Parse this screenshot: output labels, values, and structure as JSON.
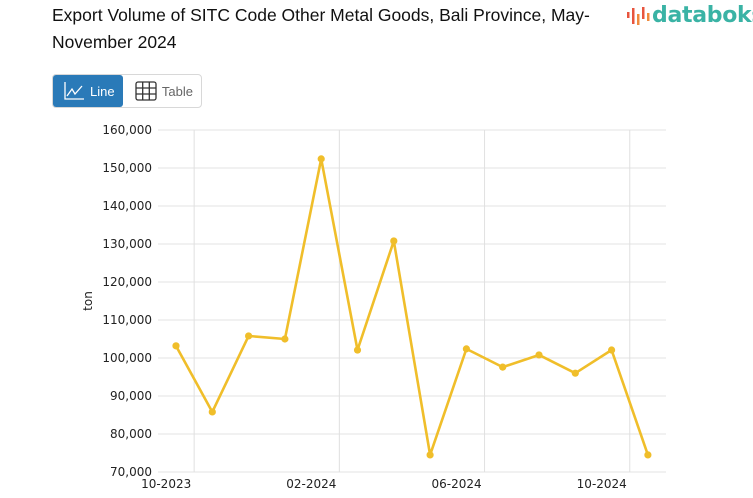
{
  "title": "Export Volume of SITC Code Other Metal Goods, Bali Province, May-November 2024",
  "brand": {
    "name": "databoks",
    "color": "#3ab3a5",
    "icon": "bar-signal-logo-icon"
  },
  "view_toggle": {
    "line_label": "Line",
    "table_label": "Table",
    "selected": "Line",
    "line_icon": "line-chart-icon",
    "table_icon": "grid-table-icon",
    "accent": "#2a7ab8"
  },
  "chart_data": {
    "type": "line",
    "title": "Export Volume of SITC Code Other Metal Goods, Bali Province, May-November 2024",
    "xlabel": "",
    "ylabel": "ton",
    "ylim": [
      70000,
      160000
    ],
    "yticks": [
      "70,000",
      "80,000",
      "90,000",
      "100,000",
      "110,000",
      "120,000",
      "130,000",
      "140,000",
      "150,000",
      "160,000"
    ],
    "xticks": [
      "10-2023",
      "02-2024",
      "06-2024",
      "10-2024"
    ],
    "grid": true,
    "legend": "none",
    "color": "#f0be2a",
    "x": [
      "09-2023",
      "10-2023",
      "11-2023",
      "12-2023",
      "01-2024",
      "02-2024",
      "03-2024",
      "04-2024",
      "05-2024",
      "06-2024",
      "07-2024",
      "08-2024",
      "09-2024",
      "10-2024"
    ],
    "values": [
      103200,
      85800,
      105800,
      105000,
      152400,
      102100,
      130800,
      74500,
      102400,
      97600,
      100800,
      96000,
      102100,
      74500
    ]
  }
}
